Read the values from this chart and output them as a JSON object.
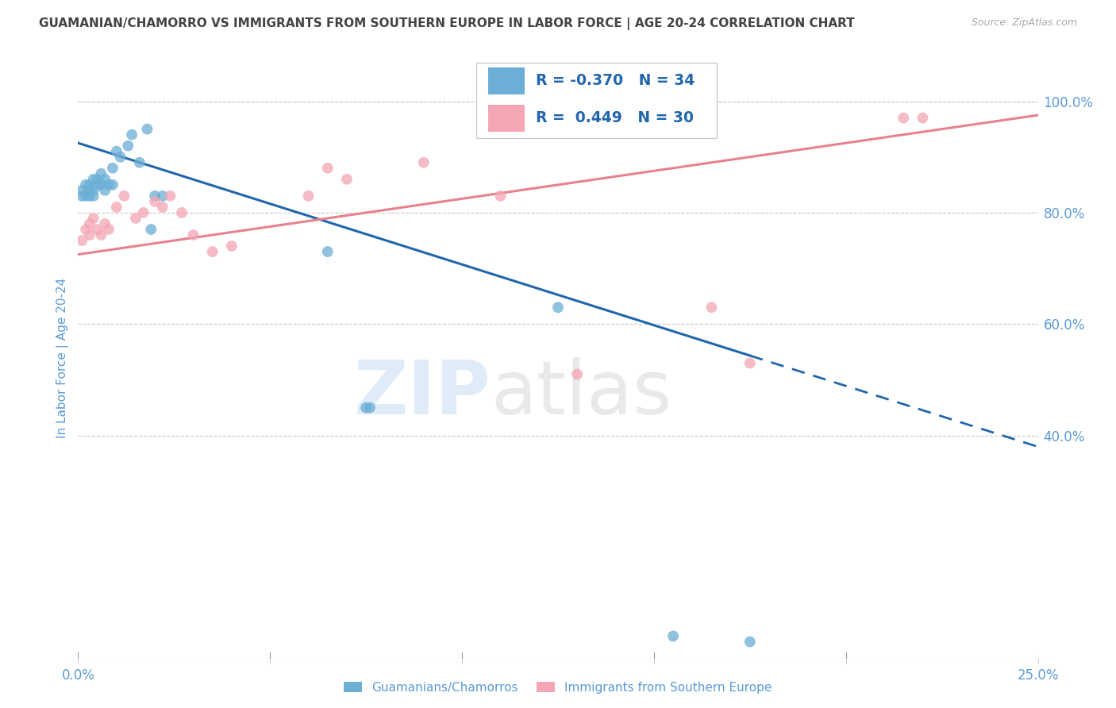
{
  "title": "GUAMANIAN/CHAMORRO VS IMMIGRANTS FROM SOUTHERN EUROPE IN LABOR FORCE | AGE 20-24 CORRELATION CHART",
  "source": "Source: ZipAtlas.com",
  "ylabel": "In Labor Force | Age 20-24",
  "xlim": [
    0.0,
    0.25
  ],
  "ylim": [
    0.0,
    1.08
  ],
  "xticks": [
    0.0,
    0.05,
    0.1,
    0.15,
    0.2,
    0.25
  ],
  "xtick_labels": [
    "0.0%",
    "",
    "",
    "",
    "",
    "25.0%"
  ],
  "yticks_right": [
    0.4,
    0.6,
    0.8,
    1.0
  ],
  "ytick_right_labels": [
    "40.0%",
    "60.0%",
    "80.0%",
    "100.0%"
  ],
  "blue_scatter_x": [
    0.001,
    0.001,
    0.002,
    0.002,
    0.003,
    0.003,
    0.003,
    0.004,
    0.004,
    0.004,
    0.005,
    0.005,
    0.006,
    0.006,
    0.007,
    0.007,
    0.008,
    0.009,
    0.009,
    0.01,
    0.011,
    0.013,
    0.014,
    0.016,
    0.018,
    0.019,
    0.02,
    0.022,
    0.065,
    0.075,
    0.076,
    0.125,
    0.155,
    0.175
  ],
  "blue_scatter_y": [
    0.84,
    0.83,
    0.85,
    0.83,
    0.85,
    0.84,
    0.83,
    0.86,
    0.84,
    0.83,
    0.86,
    0.85,
    0.87,
    0.85,
    0.86,
    0.84,
    0.85,
    0.85,
    0.88,
    0.91,
    0.9,
    0.92,
    0.94,
    0.89,
    0.95,
    0.77,
    0.83,
    0.83,
    0.73,
    0.45,
    0.45,
    0.63,
    0.04,
    0.03
  ],
  "pink_scatter_x": [
    0.001,
    0.002,
    0.003,
    0.003,
    0.004,
    0.005,
    0.006,
    0.007,
    0.008,
    0.01,
    0.012,
    0.015,
    0.017,
    0.02,
    0.022,
    0.024,
    0.027,
    0.03,
    0.035,
    0.04,
    0.06,
    0.065,
    0.07,
    0.09,
    0.11,
    0.13,
    0.165,
    0.175,
    0.215,
    0.22
  ],
  "pink_scatter_y": [
    0.75,
    0.77,
    0.76,
    0.78,
    0.79,
    0.77,
    0.76,
    0.78,
    0.77,
    0.81,
    0.83,
    0.79,
    0.8,
    0.82,
    0.81,
    0.83,
    0.8,
    0.76,
    0.73,
    0.74,
    0.83,
    0.88,
    0.86,
    0.89,
    0.83,
    0.51,
    0.63,
    0.53,
    0.97,
    0.97
  ],
  "blue_R": -0.37,
  "blue_N": 34,
  "pink_R": 0.449,
  "pink_N": 30,
  "blue_color": "#6baed6",
  "pink_color": "#f4a6b4",
  "blue_line_color": "#2166ac",
  "pink_line_color": "#e8818e",
  "trend_blue_x0": 0.0,
  "trend_blue_y0": 0.925,
  "trend_blue_x1": 0.25,
  "trend_blue_y1": 0.38,
  "trend_blue_solid_end": 0.175,
  "trend_pink_x0": 0.0,
  "trend_pink_y0": 0.725,
  "trend_pink_x1": 0.25,
  "trend_pink_y1": 0.975,
  "watermark": "ZIPatlas",
  "background_color": "#ffffff",
  "grid_color": "#c8c8c8",
  "title_color": "#444444",
  "label_color": "#5b9bd5",
  "legend_text_color": "#2166ac"
}
